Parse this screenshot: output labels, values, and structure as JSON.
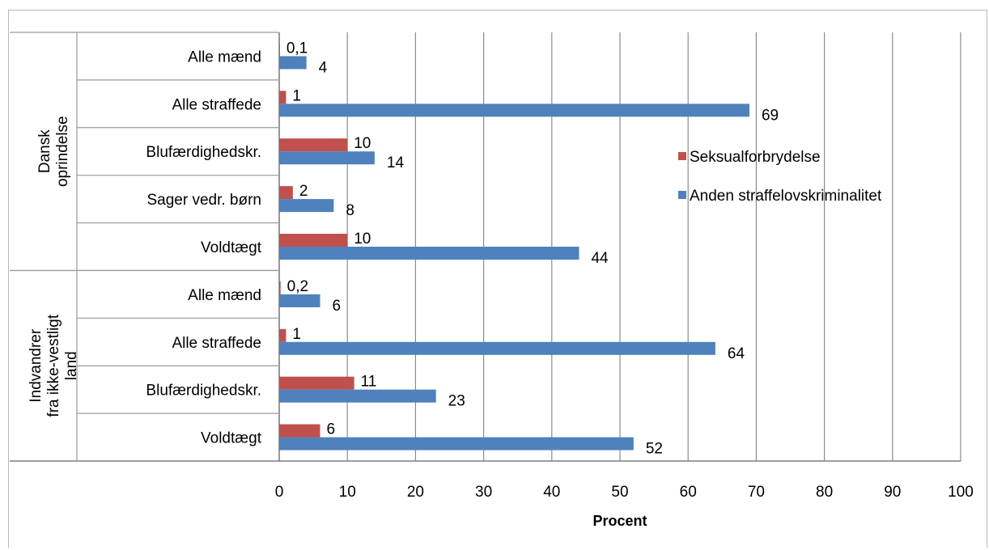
{
  "chart_data": {
    "type": "bar",
    "orientation": "horizontal",
    "groups": [
      {
        "label": "Dansk oprindelse",
        "label_lines": [
          "Dansk",
          "oprindelse"
        ],
        "categories": [
          "Alle mænd",
          "Alle straffede",
          "Blufærdighedskr.",
          "Sager vedr. børn",
          "Voldtægt"
        ]
      },
      {
        "label": "Indvandrer fra ikke-vestligt land",
        "label_lines": [
          "Indvandrer",
          "fra ikke-vestligt",
          "land"
        ],
        "categories": [
          "Alle mænd",
          "Alle straffede",
          "Blufærdighedskr.",
          "Voldtægt"
        ]
      }
    ],
    "categories": [
      "Alle mænd",
      "Alle straffede",
      "Blufærdighedskr.",
      "Sager vedr. børn",
      "Voldtægt",
      "Alle mænd",
      "Alle straffede",
      "Blufærdighedskr.",
      "Voldtægt"
    ],
    "series": [
      {
        "name": "Seksualforbrydelse",
        "color": "#c0504d",
        "values": [
          0.1,
          1,
          10,
          2,
          10,
          0.2,
          1,
          11,
          6
        ],
        "labels": [
          "0,1",
          "1",
          "10",
          "2",
          "10",
          "0,2",
          "1",
          "11",
          "6"
        ]
      },
      {
        "name": "Anden straffelovskriminalitet",
        "color": "#4f81bd",
        "values": [
          4,
          69,
          14,
          8,
          44,
          6,
          64,
          23,
          52
        ],
        "labels": [
          "4",
          "69",
          "14",
          "8",
          "44",
          "6",
          "64",
          "23",
          "52"
        ]
      }
    ],
    "xlabel": "Procent",
    "xlim": [
      0,
      100
    ],
    "xticks": [
      0,
      10,
      20,
      30,
      40,
      50,
      60,
      70,
      80,
      90,
      100
    ],
    "grid": true,
    "legend_position": "right"
  }
}
